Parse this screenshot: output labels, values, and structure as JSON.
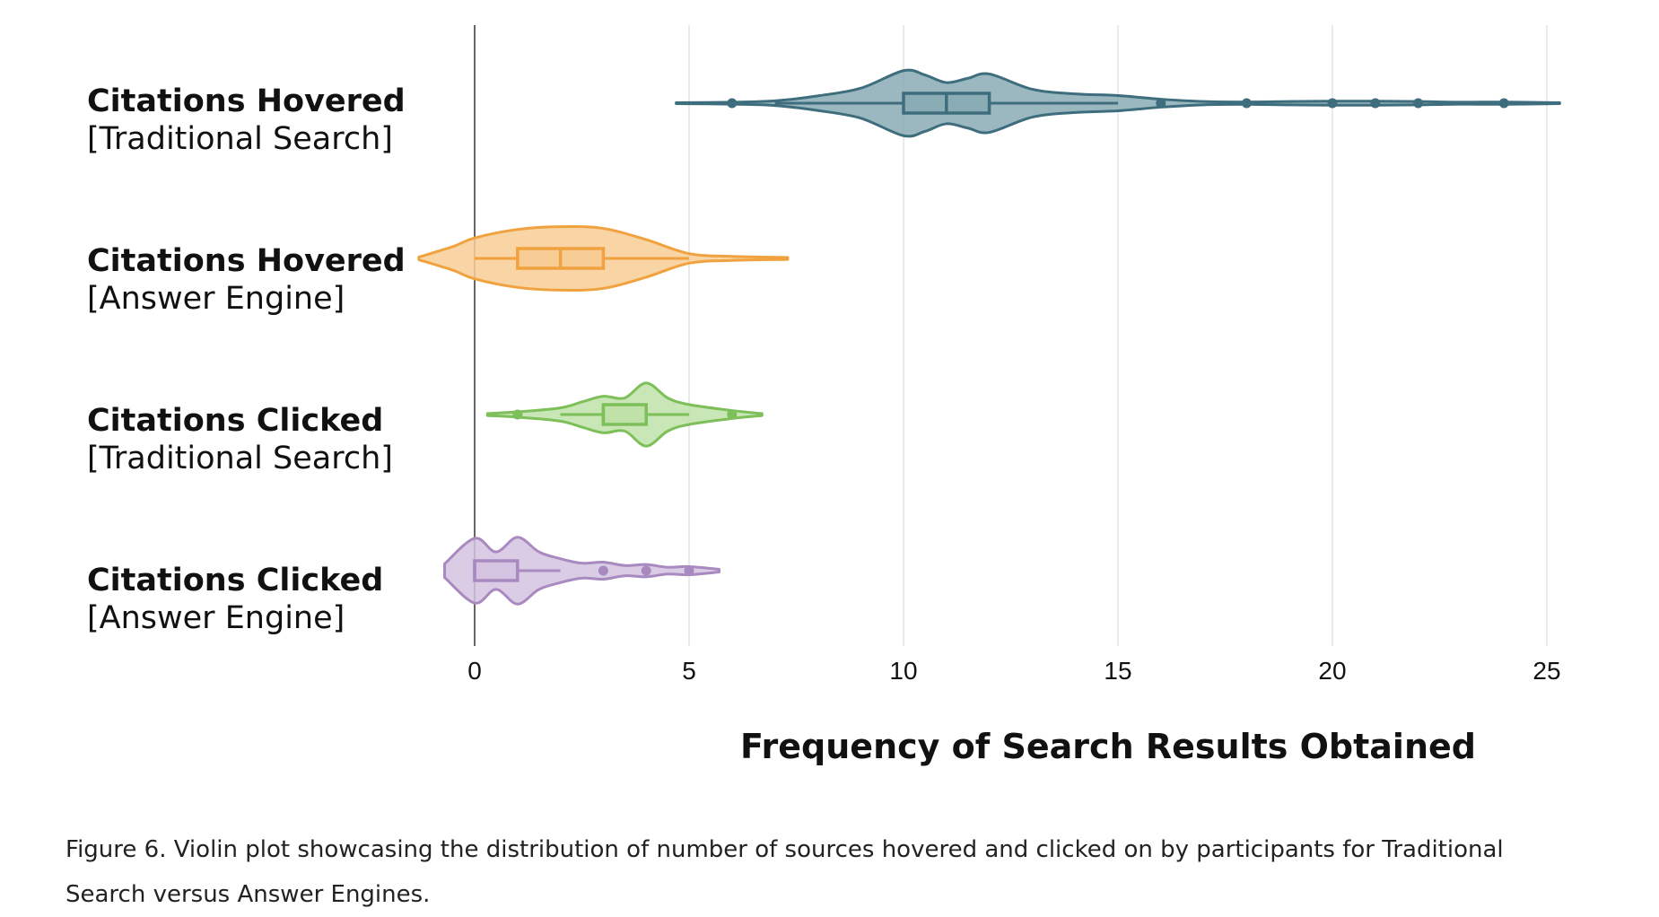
{
  "chart_data": {
    "type": "violin",
    "orientation": "horizontal",
    "xlabel": "Frequency of Search Results Obtained",
    "xlim": [
      -1.3,
      25.4
    ],
    "xticks": [
      0,
      5,
      10,
      15,
      20,
      25
    ],
    "xtick_labels": [
      "0",
      "5",
      "10",
      "15",
      "20",
      "25"
    ],
    "grid": "vertical",
    "series": [
      {
        "label_line1": "Citations Hovered",
        "label_line2": "[Traditional Search]",
        "color": "#3e6d7d",
        "fill": "#8aacb5",
        "extent": [
          4.7,
          25.3
        ],
        "density": [
          [
            4.7,
            0.015
          ],
          [
            6,
            0.03
          ],
          [
            7,
            0.07
          ],
          [
            8,
            0.22
          ],
          [
            9,
            0.45
          ],
          [
            10,
            0.98
          ],
          [
            10.5,
            0.85
          ],
          [
            11,
            0.62
          ],
          [
            11.5,
            0.75
          ],
          [
            12,
            0.88
          ],
          [
            13,
            0.42
          ],
          [
            14,
            0.28
          ],
          [
            15,
            0.23
          ],
          [
            16,
            0.12
          ],
          [
            17,
            0.05
          ],
          [
            18,
            0.035
          ],
          [
            19,
            0.05
          ],
          [
            20,
            0.06
          ],
          [
            21,
            0.06
          ],
          [
            22,
            0.05
          ],
          [
            23,
            0.03
          ],
          [
            24,
            0.035
          ],
          [
            25.3,
            0.015
          ]
        ],
        "max_halfwidth": 37,
        "box": {
          "q1": 10,
          "median": 11,
          "q3": 12
        },
        "whiskers": [
          7,
          15
        ],
        "outliers": [
          6,
          16,
          18,
          20,
          21,
          22,
          24
        ]
      },
      {
        "label_line1": "Citations Hovered",
        "label_line2": "[Answer Engine]",
        "color": "#f0a23e",
        "fill": "#f8cc95",
        "extent": [
          -1.3,
          7.3
        ],
        "density": [
          [
            -1.3,
            0.04
          ],
          [
            -0.5,
            0.35
          ],
          [
            0,
            0.6
          ],
          [
            1,
            0.85
          ],
          [
            2,
            0.93
          ],
          [
            3,
            0.88
          ],
          [
            4,
            0.55
          ],
          [
            5,
            0.14
          ],
          [
            6,
            0.06
          ],
          [
            7.3,
            0.03
          ]
        ],
        "max_halfwidth": 38,
        "box": {
          "q1": 1,
          "median": 2,
          "q3": 3
        },
        "whiskers": [
          0,
          5
        ],
        "outliers": []
      },
      {
        "label_line1": "Citations Clicked",
        "label_line2": "[Traditional Search]",
        "color": "#7dbf58",
        "fill": "#c0e2a9",
        "extent": [
          0.3,
          6.7
        ],
        "density": [
          [
            0.3,
            0.03
          ],
          [
            1,
            0.08
          ],
          [
            2,
            0.2
          ],
          [
            2.5,
            0.38
          ],
          [
            3,
            0.55
          ],
          [
            3.5,
            0.5
          ],
          [
            4,
            0.95
          ],
          [
            4.5,
            0.5
          ],
          [
            5,
            0.3
          ],
          [
            6,
            0.12
          ],
          [
            6.7,
            0.03
          ]
        ],
        "max_halfwidth": 37,
        "box": {
          "q1": 3,
          "median": 3,
          "q3": 4
        },
        "whiskers": [
          2,
          5
        ],
        "outliers": [
          1,
          6
        ]
      },
      {
        "label_line1": "Citations Clicked",
        "label_line2": "[Answer Engine]",
        "color": "#a98ac0",
        "fill": "#d4c3e1",
        "extent": [
          -0.7,
          5.7
        ],
        "density": [
          [
            -0.7,
            0.2
          ],
          [
            0,
            0.95
          ],
          [
            0.5,
            0.55
          ],
          [
            1,
            0.98
          ],
          [
            1.5,
            0.55
          ],
          [
            2,
            0.35
          ],
          [
            2.5,
            0.22
          ],
          [
            3,
            0.25
          ],
          [
            3.5,
            0.15
          ],
          [
            4,
            0.18
          ],
          [
            4.5,
            0.1
          ],
          [
            5,
            0.12
          ],
          [
            5.7,
            0.04
          ]
        ],
        "max_halfwidth": 38,
        "box": {
          "q1": 0,
          "median": 0,
          "q3": 1
        },
        "whiskers": [
          0,
          2
        ],
        "outliers": [
          3,
          4,
          5
        ]
      }
    ]
  },
  "caption": "Figure 6. Violin plot showcasing the distribution of number of sources hovered and clicked on by participants for Traditional Search versus Answer Engines."
}
